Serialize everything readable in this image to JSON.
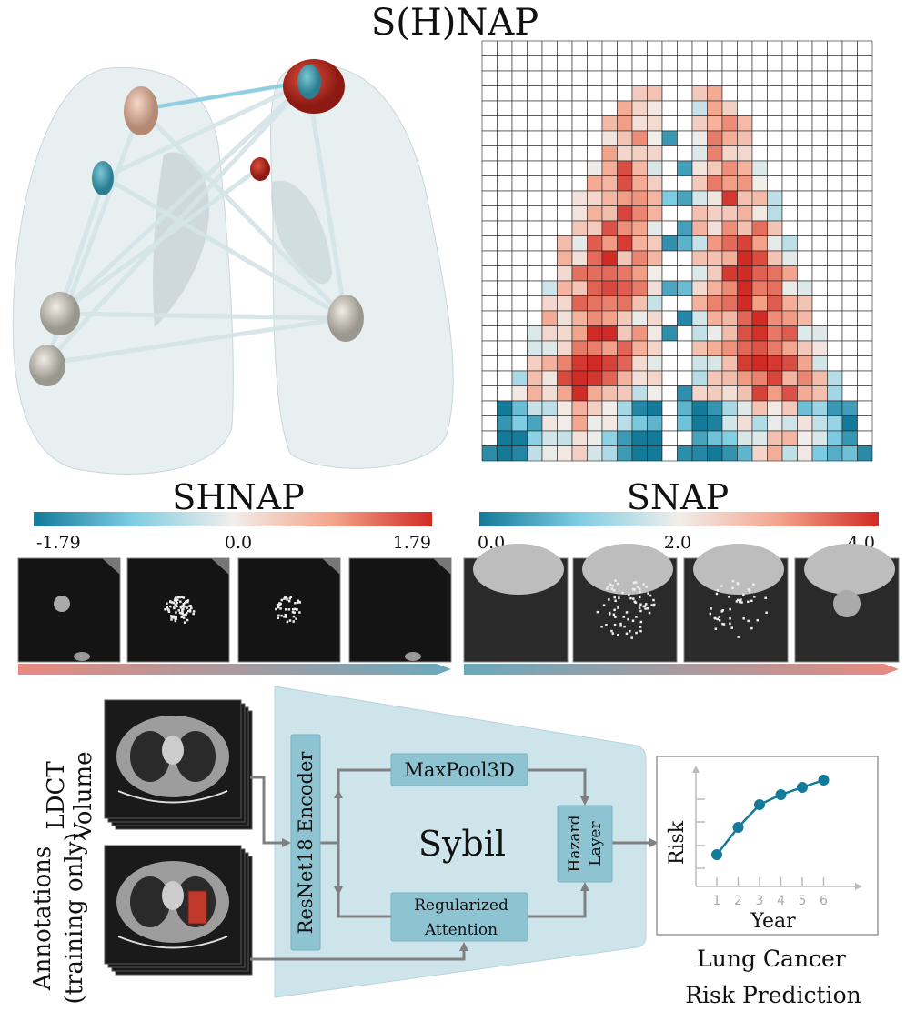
{
  "title": "S(H)NAP",
  "shnap": {
    "label": "SHNAP",
    "colorbar": {
      "min": "-1.79",
      "mid": "0.0",
      "max": "1.79",
      "colors": [
        "#137a99",
        "#7fcde3",
        "#f2eeea",
        "#f4a48c",
        "#d02b25"
      ]
    }
  },
  "snap": {
    "label": "SNAP",
    "colorbar": {
      "min": "0.0",
      "mid": "2.0",
      "max": "4.0",
      "colors": [
        "#137a99",
        "#7fcde3",
        "#f2eeea",
        "#f4a48c",
        "#d02b25"
      ]
    }
  },
  "pipeline": {
    "input_volume_label": [
      "LDCT",
      "Volume"
    ],
    "input_annotations_label": [
      "Annotations",
      "(training only)"
    ],
    "model_name": "Sybil",
    "encoder": "ResNet18 Encoder",
    "maxpool": "MaxPool3D",
    "attention": [
      "Regularized",
      "Attention"
    ],
    "hazard": [
      "Hazard",
      "Layer"
    ],
    "output_label": [
      "Lung Cancer",
      "Risk Prediction"
    ],
    "model_color": "#cde4ea",
    "block_color": "#8ec3d1"
  },
  "risk_plot": {
    "xlabel": "Year",
    "ylabel": "Risk",
    "x_ticks": [
      "1",
      "2",
      "3",
      "4",
      "5",
      "6"
    ],
    "line_color": "#137a99"
  }
}
